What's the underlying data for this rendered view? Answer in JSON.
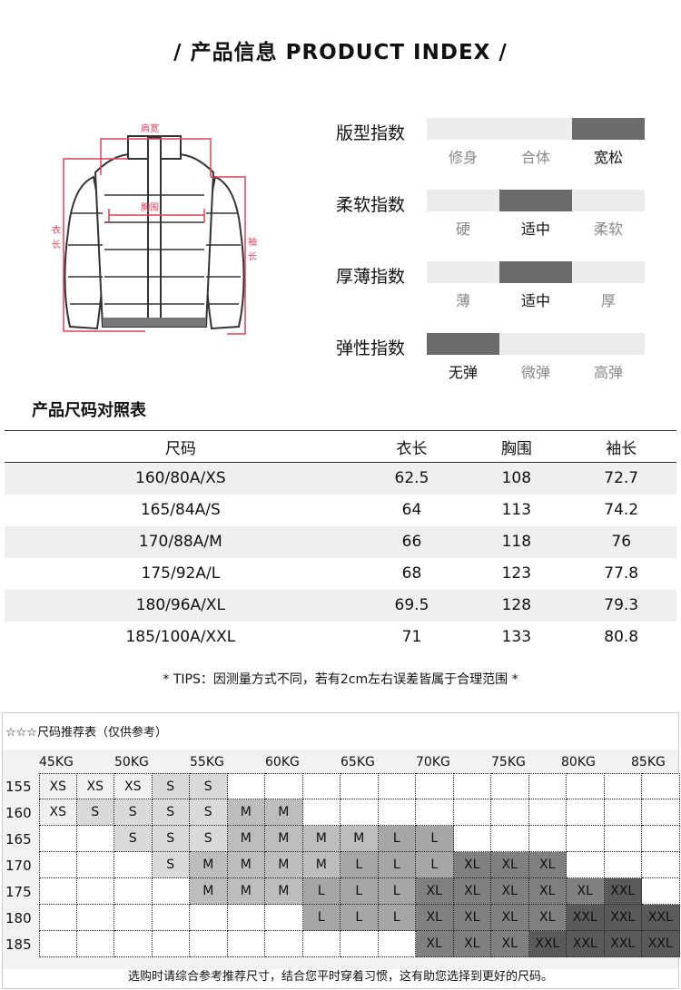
{
  "title": "/  产品信息 PRODUCT INDEX  /",
  "diagram": {
    "shoulder": "肩宽",
    "chest": "胸围",
    "length": [
      "衣",
      "长"
    ],
    "sleeve": [
      "袖",
      "长"
    ]
  },
  "indices": [
    {
      "label": "版型指数",
      "options": [
        "修身",
        "合体",
        "宽松"
      ],
      "selected": 2
    },
    {
      "label": "柔软指数",
      "options": [
        "硬",
        "适中",
        "柔软"
      ],
      "selected": 1
    },
    {
      "label": "厚薄指数",
      "options": [
        "薄",
        "适中",
        "厚"
      ],
      "selected": 1
    },
    {
      "label": "弹性指数",
      "options": [
        "无弹",
        "微弹",
        "高弹"
      ],
      "selected": 0
    }
  ],
  "size_table": {
    "title": "产品尺码对照表",
    "headers": [
      "尺码",
      "衣长",
      "胸围",
      "袖长"
    ],
    "rows": [
      [
        "160/80A/XS",
        "62.5",
        "108",
        "72.7"
      ],
      [
        "165/84A/S",
        "64",
        "113",
        "74.2"
      ],
      [
        "170/88A/M",
        "66",
        "118",
        "76"
      ],
      [
        "175/92A/L",
        "68",
        "123",
        "77.8"
      ],
      [
        "180/96A/XL",
        "69.5",
        "128",
        "79.3"
      ],
      [
        "185/100A/XXL",
        "71",
        "133",
        "80.8"
      ]
    ]
  },
  "tips": "* TIPS：因测量方式不同，若有2cm左右误差皆属于合理范围 *",
  "recommend": {
    "title": "☆☆☆尺码推荐表（仅供参考）",
    "weights": [
      "45KG",
      "50KG",
      "55KG",
      "60KG",
      "65KG",
      "70KG",
      "75KG",
      "80KG",
      "85KG"
    ],
    "heights": [
      "155",
      "160",
      "165",
      "170",
      "175",
      "180",
      "185"
    ],
    "grid": [
      [
        "XS",
        "XS",
        "XS",
        "S",
        "S",
        "",
        "",
        "",
        "",
        "",
        "",
        "",
        "",
        "",
        "",
        "",
        ""
      ],
      [
        "XS",
        "S",
        "S",
        "S",
        "S",
        "M",
        "M",
        "",
        "",
        "",
        "",
        "",
        "",
        "",
        "",
        "",
        ""
      ],
      [
        "",
        "",
        "S",
        "S",
        "S",
        "M",
        "M",
        "M",
        "M",
        "L",
        "L",
        "",
        "",
        "",
        "",
        "",
        ""
      ],
      [
        "",
        "",
        "",
        "S",
        "M",
        "M",
        "M",
        "M",
        "L",
        "L",
        "L",
        "XL",
        "XL",
        "XL",
        "",
        "",
        ""
      ],
      [
        "",
        "",
        "",
        "",
        "M",
        "M",
        "M",
        "L",
        "L",
        "L",
        "XL",
        "XL",
        "XL",
        "XL",
        "XL",
        "XXL",
        ""
      ],
      [
        "",
        "",
        "",
        "",
        "",
        "",
        "",
        "L",
        "L",
        "L",
        "XL",
        "XL",
        "XL",
        "XL",
        "XXL",
        "XXL",
        "XXL"
      ],
      [
        "",
        "",
        "",
        "",
        "",
        "",
        "",
        "",
        "",
        "",
        "XL",
        "XL",
        "XL",
        "XXL",
        "XXL",
        "XXL",
        "XXL"
      ]
    ],
    "size_colors": {
      "XS": "#f0f0f0",
      "S": "#d9d9d9",
      "M": "#bdbdbd",
      "L": "#a6a6a6",
      "XL": "#808080",
      "XXL": "#5a5a5a"
    },
    "footer": "选购时请综合参考推荐尺寸，结合您平时穿着习惯，这有助您选择到更好的尺码。"
  }
}
